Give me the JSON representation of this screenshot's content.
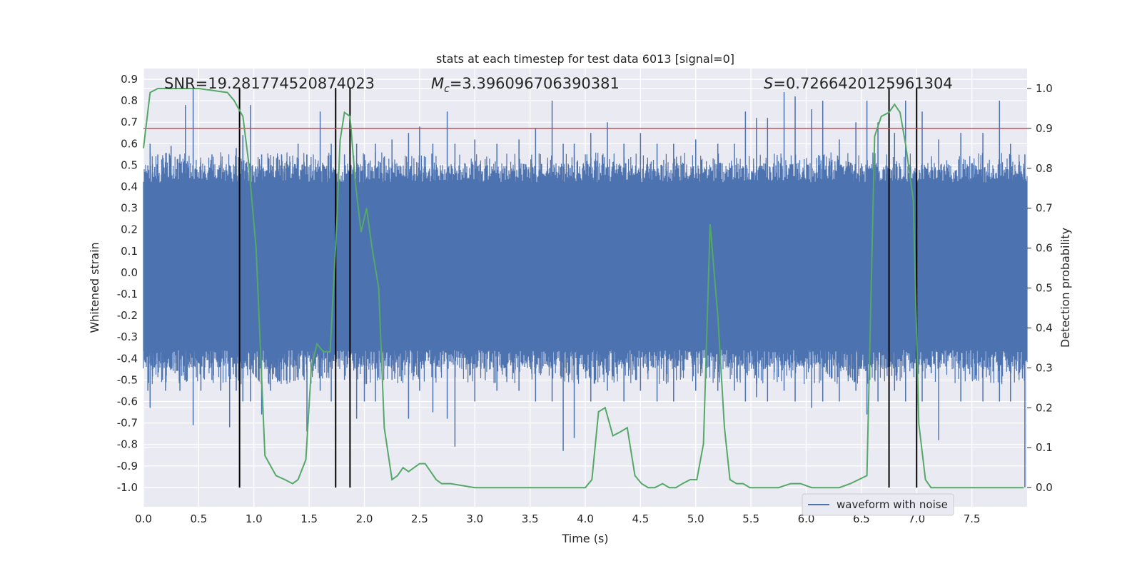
{
  "chart_data": {
    "type": "line",
    "title": "stats at each timestep for test data 6013 [signal=0]",
    "xlabel": "Time (s)",
    "ylabel": "Whitened strain",
    "y2label": "Detection probability",
    "xlim": [
      0.0,
      8.0
    ],
    "ylim": [
      -1.09,
      0.95
    ],
    "y2lim": [
      -0.048,
      1.05
    ],
    "xticks": [
      "0.0",
      "0.5",
      "1.0",
      "1.5",
      "2.0",
      "2.5",
      "3.0",
      "3.5",
      "4.0",
      "4.5",
      "5.0",
      "5.5",
      "6.0",
      "6.5",
      "7.0",
      "7.5"
    ],
    "yticks": [
      "0.9",
      "0.8",
      "0.7",
      "0.6",
      "0.5",
      "0.4",
      "0.3",
      "0.2",
      "0.1",
      "0.0",
      "-0.1",
      "-0.2",
      "-0.3",
      "-0.4",
      "-0.5",
      "-0.6",
      "-0.7",
      "-0.8",
      "-0.9",
      "-1.0"
    ],
    "y2ticks": [
      "1.0",
      "0.9",
      "0.8",
      "0.7",
      "0.6",
      "0.5",
      "0.4",
      "0.3",
      "0.2",
      "0.1",
      "0.0"
    ],
    "grid": true,
    "legend_placement": "lower-right",
    "annotations": {
      "snr": "SNR=19.281774520874023",
      "mc_symbol": "M",
      "mc_sub": "c",
      "mc_value": "=3.396096706390381",
      "s_symbol": "S",
      "s_value": "=0.7266420125961304"
    },
    "threshold": {
      "value": 0.9,
      "axis": "right",
      "color": "#c44e52"
    },
    "vertical_lines": [
      0.87,
      1.74,
      1.87,
      6.75,
      7.0
    ],
    "series": [
      {
        "name": "waveform with noise",
        "color": "#4c72b0",
        "axis": "left",
        "kind": "noise",
        "band": [
          -0.36,
          0.42
        ],
        "spikes": [
          [
            0.04,
            -0.55,
            0.5
          ],
          [
            0.06,
            -0.63,
            0.6
          ],
          [
            0.13,
            -0.4,
            0.55
          ],
          [
            0.2,
            -0.55,
            0.5
          ],
          [
            0.25,
            -0.45,
            0.59
          ],
          [
            0.33,
            -0.55,
            0.55
          ],
          [
            0.38,
            -0.5,
            0.78
          ],
          [
            0.45,
            -0.71,
            0.86
          ],
          [
            0.52,
            -0.55,
            0.5
          ],
          [
            0.62,
            -0.5,
            0.55
          ],
          [
            0.7,
            -0.55,
            0.52
          ],
          [
            0.78,
            -0.72,
            0.5
          ],
          [
            0.84,
            -0.55,
            0.58
          ],
          [
            0.9,
            -0.6,
            0.64
          ],
          [
            0.97,
            -0.6,
            0.78
          ],
          [
            1.07,
            -0.66,
            0.55
          ],
          [
            1.15,
            -0.55,
            0.5
          ],
          [
            1.25,
            -0.45,
            0.55
          ],
          [
            1.4,
            -0.5,
            0.6
          ],
          [
            1.48,
            -0.74,
            0.55
          ],
          [
            1.6,
            -0.55,
            0.75
          ],
          [
            1.7,
            -0.6,
            0.6
          ],
          [
            1.82,
            -0.5,
            0.55
          ],
          [
            1.93,
            -0.68,
            0.6
          ],
          [
            2.0,
            -0.6,
            0.55
          ],
          [
            2.1,
            -0.6,
            0.6
          ],
          [
            2.25,
            -0.5,
            0.62
          ],
          [
            2.4,
            -0.68,
            0.65
          ],
          [
            2.5,
            -0.55,
            0.68
          ],
          [
            2.62,
            -0.65,
            0.6
          ],
          [
            2.75,
            -0.68,
            0.75
          ],
          [
            2.82,
            -0.81,
            0.6
          ],
          [
            3.0,
            -0.6,
            0.62
          ],
          [
            3.2,
            -0.55,
            0.6
          ],
          [
            3.4,
            -0.55,
            0.62
          ],
          [
            3.55,
            -0.6,
            0.67
          ],
          [
            3.7,
            -0.6,
            0.8
          ],
          [
            3.8,
            -0.83,
            0.6
          ],
          [
            3.9,
            -0.77,
            0.6
          ],
          [
            4.05,
            -0.6,
            0.65
          ],
          [
            4.2,
            -0.55,
            0.7
          ],
          [
            4.35,
            -0.6,
            0.6
          ],
          [
            4.5,
            -0.55,
            0.65
          ],
          [
            4.65,
            -0.6,
            0.6
          ],
          [
            4.8,
            -0.6,
            0.6
          ],
          [
            5.0,
            -0.55,
            0.62
          ],
          [
            5.2,
            -0.55,
            0.6
          ],
          [
            5.35,
            -0.55,
            0.6
          ],
          [
            5.45,
            -0.6,
            0.75
          ],
          [
            5.55,
            -0.58,
            0.72
          ],
          [
            5.65,
            -0.6,
            0.72
          ],
          [
            5.8,
            -0.55,
            0.84
          ],
          [
            5.9,
            -0.6,
            0.82
          ],
          [
            6.05,
            -0.63,
            0.76
          ],
          [
            6.15,
            -0.6,
            0.8
          ],
          [
            6.3,
            -0.6,
            0.62
          ],
          [
            6.45,
            -0.55,
            0.7
          ],
          [
            6.55,
            -0.66,
            0.8
          ],
          [
            6.65,
            -0.6,
            0.7
          ],
          [
            6.8,
            -0.55,
            0.65
          ],
          [
            6.9,
            -0.6,
            0.8
          ],
          [
            7.05,
            -0.6,
            0.75
          ],
          [
            7.2,
            -0.78,
            0.62
          ],
          [
            7.4,
            -0.6,
            0.65
          ],
          [
            7.6,
            -0.6,
            0.65
          ],
          [
            7.75,
            -0.6,
            0.8
          ],
          [
            7.85,
            -0.6,
            0.6
          ],
          [
            7.98,
            -1.0,
            0.55
          ]
        ]
      },
      {
        "name": "detection probability",
        "color": "#55a868",
        "axis": "right",
        "kind": "line",
        "x": [
          0.0,
          0.06,
          0.13,
          0.5,
          0.76,
          0.82,
          0.9,
          0.95,
          1.02,
          1.1,
          1.2,
          1.28,
          1.35,
          1.4,
          1.47,
          1.52,
          1.57,
          1.63,
          1.69,
          1.75,
          1.78,
          1.82,
          1.87,
          1.92,
          1.97,
          2.02,
          2.07,
          2.13,
          2.18,
          2.25,
          2.3,
          2.35,
          2.4,
          2.45,
          2.5,
          2.55,
          2.6,
          2.65,
          2.7,
          2.78,
          3.0,
          3.5,
          3.7,
          3.9,
          4.0,
          4.06,
          4.12,
          4.18,
          4.25,
          4.32,
          4.38,
          4.45,
          4.51,
          4.57,
          4.63,
          4.7,
          4.76,
          4.82,
          4.88,
          4.95,
          5.01,
          5.07,
          5.13,
          5.2,
          5.26,
          5.31,
          5.37,
          5.43,
          5.49,
          5.55,
          5.6,
          5.67,
          5.75,
          5.86,
          5.95,
          6.05,
          6.15,
          6.22,
          6.3,
          6.4,
          6.55,
          6.62,
          6.68,
          6.75,
          6.8,
          6.85,
          6.9,
          6.97,
          7.02,
          7.08,
          7.13,
          7.18,
          7.23,
          7.3,
          7.45,
          7.6,
          7.75,
          7.97
        ],
        "y": [
          0.85,
          0.99,
          1.0,
          1.0,
          0.99,
          0.97,
          0.93,
          0.82,
          0.6,
          0.08,
          0.03,
          0.02,
          0.01,
          0.02,
          0.07,
          0.3,
          0.36,
          0.34,
          0.34,
          0.66,
          0.87,
          0.94,
          0.93,
          0.76,
          0.64,
          0.7,
          0.6,
          0.5,
          0.15,
          0.02,
          0.03,
          0.05,
          0.04,
          0.05,
          0.06,
          0.06,
          0.04,
          0.02,
          0.01,
          0.01,
          0.0,
          0.0,
          0.0,
          0.0,
          0.0,
          0.02,
          0.19,
          0.2,
          0.13,
          0.14,
          0.15,
          0.03,
          0.01,
          0.0,
          0.0,
          0.01,
          0.0,
          0.0,
          0.01,
          0.02,
          0.02,
          0.11,
          0.66,
          0.43,
          0.15,
          0.02,
          0.01,
          0.01,
          0.0,
          0.0,
          0.0,
          0.0,
          0.0,
          0.01,
          0.01,
          0.0,
          0.0,
          0.0,
          0.0,
          0.01,
          0.03,
          0.88,
          0.93,
          0.94,
          0.96,
          0.94,
          0.86,
          0.72,
          0.16,
          0.02,
          0.0,
          0.0,
          0.0,
          0.0,
          0.0,
          0.0,
          0.0,
          0.0
        ]
      }
    ]
  }
}
